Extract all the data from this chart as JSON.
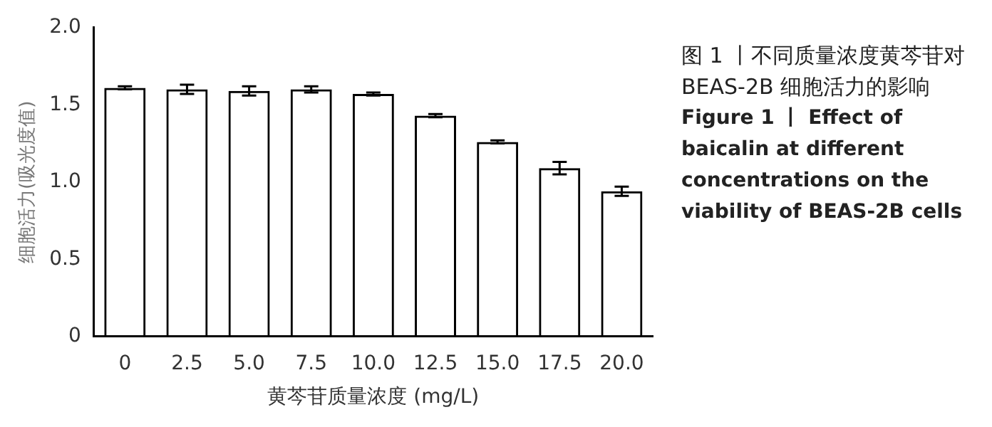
{
  "chart_data": {
    "type": "bar",
    "categories": [
      "0",
      "2.5",
      "5.0",
      "7.5",
      "10.0",
      "12.5",
      "15.0",
      "17.5",
      "20.0"
    ],
    "values": [
      1.61,
      1.6,
      1.59,
      1.6,
      1.57,
      1.43,
      1.26,
      1.09,
      0.94
    ],
    "errors": [
      0.01,
      0.03,
      0.03,
      0.02,
      0.01,
      0.01,
      0.01,
      0.04,
      0.03
    ],
    "color": "#000000",
    "xlabel": "黄芩苷质量浓度 (mg/L)",
    "ylabel": "细胞活力(吸光度值)",
    "ylim": [
      0,
      2
    ],
    "yticks": [
      0,
      0.5,
      {
        "value": 1,
        "label": "1.0"
      },
      1.5,
      {
        "value": 2,
        "label": "2.0"
      }
    ],
    "grid": false,
    "legend": false,
    "annotations": [
      "图 1 丨不同质量浓度黄芩苷对 BEAS-2B 细胞活力的影响",
      "Figure 1 丨 Effect of baicalin at different concentrations on the viability of BEAS-2B cells"
    ]
  }
}
